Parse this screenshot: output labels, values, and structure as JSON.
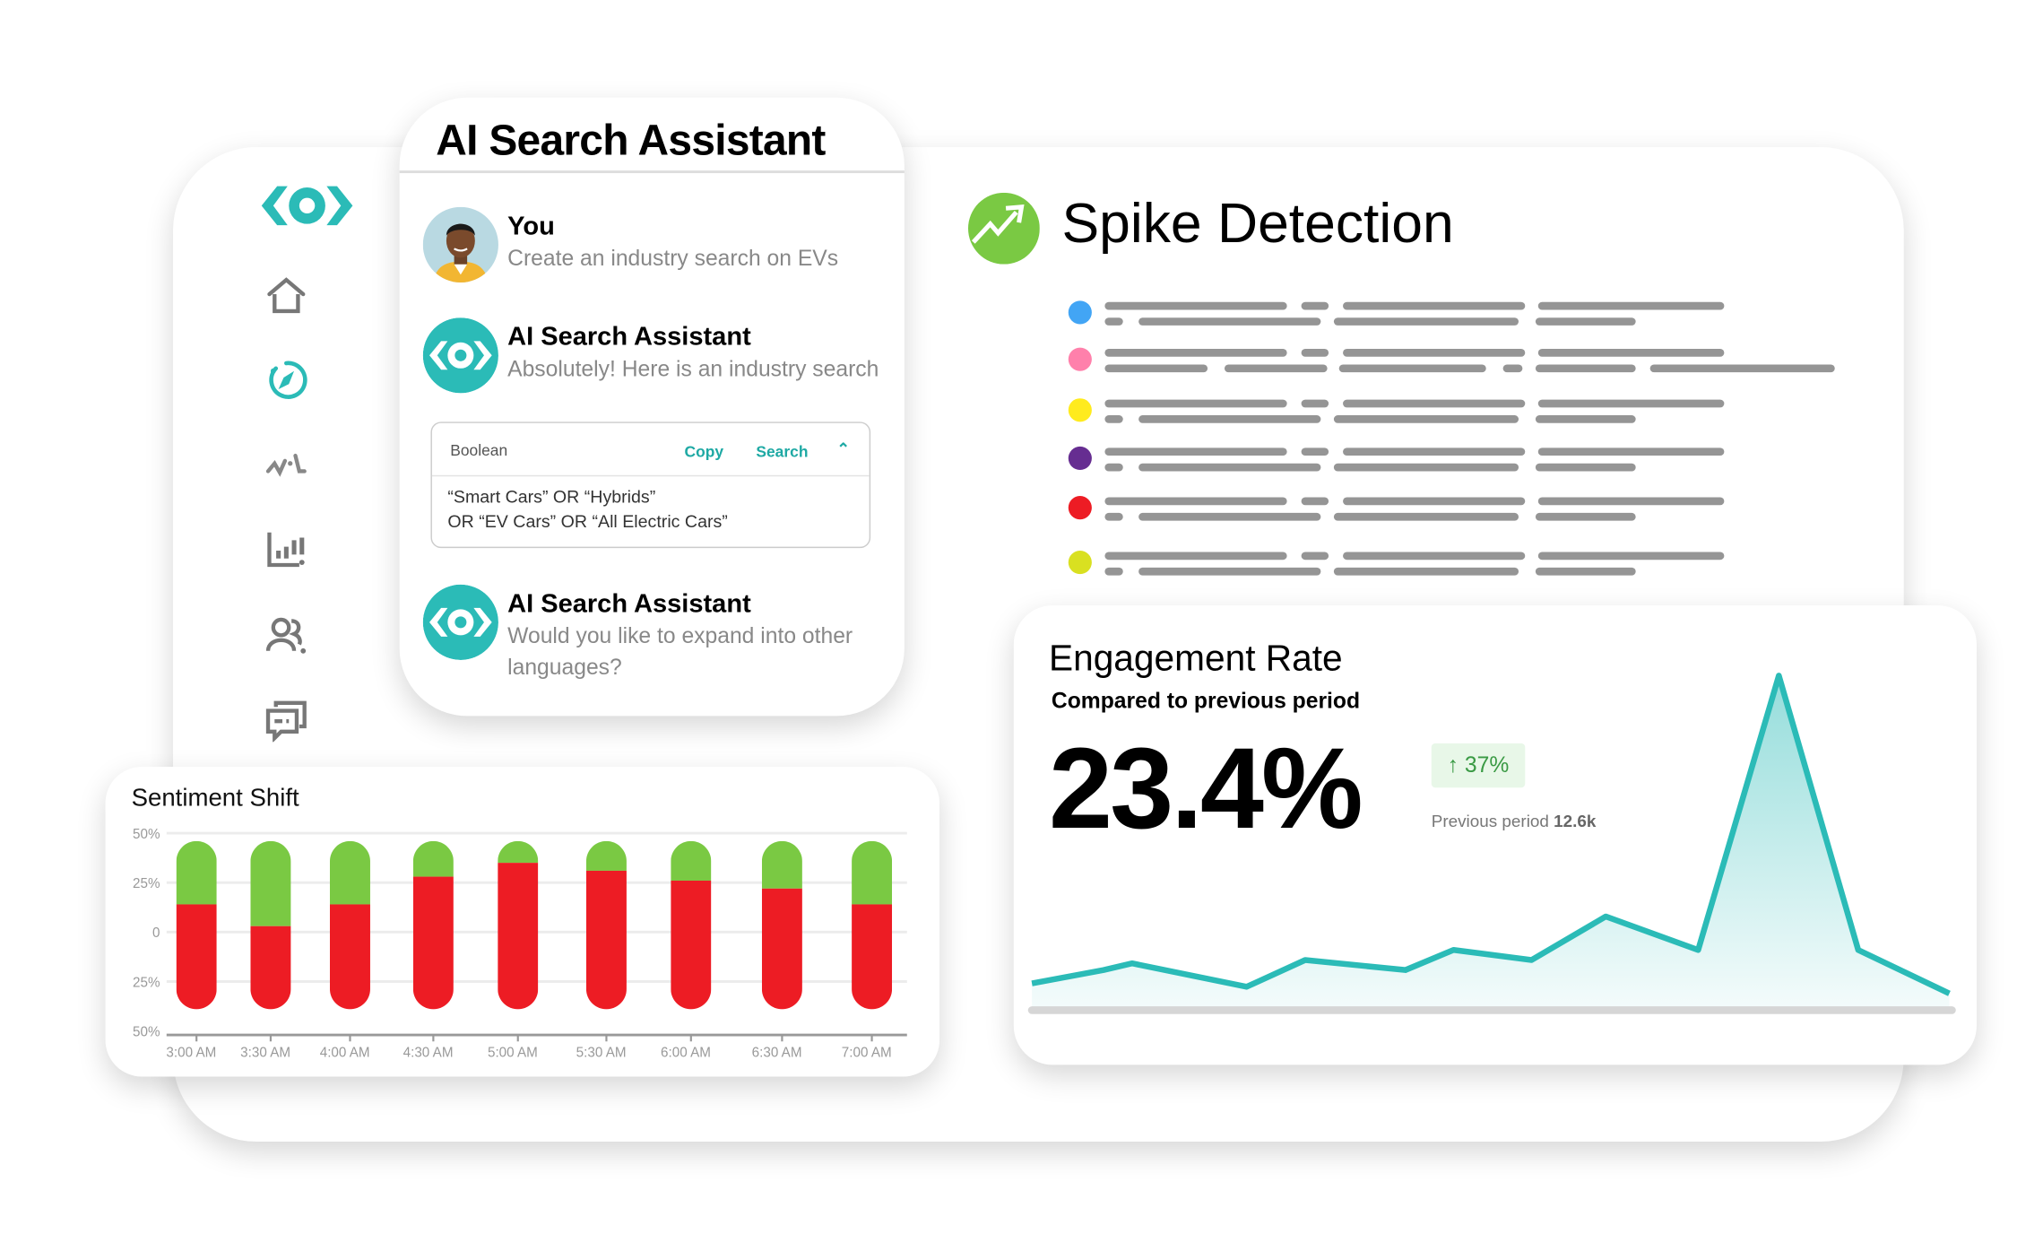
{
  "sidebar": {
    "logo": "eye-logo",
    "items": [
      {
        "icon": "home-icon",
        "active": false
      },
      {
        "icon": "compass-icon",
        "active": true
      },
      {
        "icon": "pulse-icon",
        "active": false
      },
      {
        "icon": "bar-chart-alert-icon",
        "active": false
      },
      {
        "icon": "users-icon",
        "active": false
      },
      {
        "icon": "chat-icon",
        "active": false
      }
    ]
  },
  "assistant": {
    "title": "AI Search Assistant",
    "messages": [
      {
        "sender": "You",
        "text": "Create an industry search on EVs"
      },
      {
        "sender": "AI Search Assistant",
        "text": "Absolutely! Here is an industry search"
      },
      {
        "sender": "AI Search Assistant",
        "text_line1": "Would you like to expand into other",
        "text_line2": "languages?"
      }
    ],
    "boolean": {
      "label": "Boolean",
      "copy": "Copy",
      "search": "Search",
      "query_line1": "“Smart Cars”  OR  “Hybrids”",
      "query_line2": "OR “EV Cars” OR “All Electric Cars”"
    }
  },
  "spike": {
    "title": "Spike Detection",
    "dot_colors": [
      "#42A5F5",
      "#FF80AB",
      "#FFEB1E",
      "#662D91",
      "#ED1C24",
      "#D9E021"
    ]
  },
  "engagement": {
    "title": "Engagement Rate",
    "subtitle": "Compared to previous period",
    "value": "23.4%",
    "change": "↑ 37%",
    "previous_label": "Previous period",
    "previous_value": "12.6k",
    "accent": "#2BBBB7"
  },
  "chart_data": [
    {
      "type": "bar",
      "title": "Sentiment Shift",
      "categories": [
        "3:00 AM",
        "3:30 AM",
        "4:00 AM",
        "4:30 AM",
        "5:00 AM",
        "5:30 AM",
        "6:00 AM",
        "6:30 AM",
        "7:00 AM"
      ],
      "yticks": [
        "50%",
        "25%",
        "0",
        "25%",
        "50%"
      ],
      "ylim": [
        -50,
        50
      ],
      "bar_range": [
        -39,
        46
      ],
      "boundary": [
        14,
        3,
        14,
        28,
        35,
        31,
        26,
        22,
        14
      ],
      "colors": {
        "upper": "#7AC943",
        "lower": "#ED1C24"
      },
      "grid": true
    },
    {
      "type": "area",
      "values": [
        8,
        12,
        14,
        7,
        15,
        12,
        18,
        15,
        28,
        18,
        100,
        18,
        5
      ],
      "color": "#2BBBB7",
      "grid": false
    }
  ]
}
